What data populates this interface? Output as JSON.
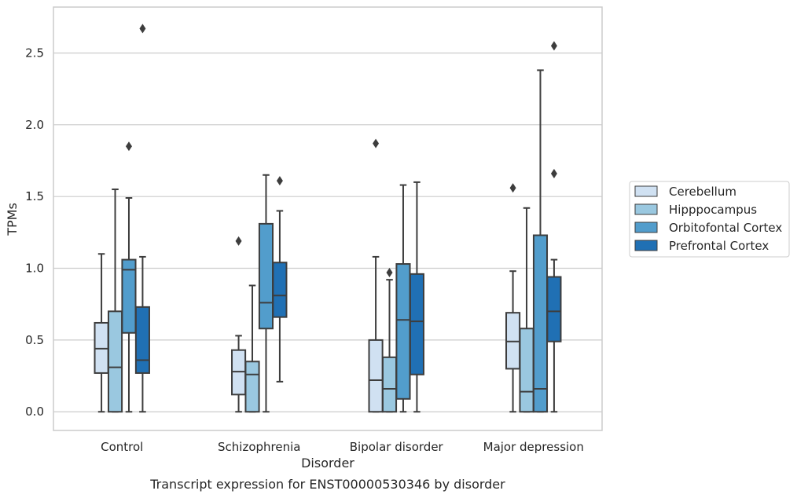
{
  "chart_data": {
    "type": "boxplot",
    "title": "",
    "xlabel": "Disorder",
    "ylabel": "TPMs",
    "caption": "Transcript expression for ENST00000530346 by disorder",
    "ylim": [
      -0.13,
      2.82
    ],
    "yticks": [
      0.0,
      0.5,
      1.0,
      1.5,
      2.0,
      2.5
    ],
    "ytick_labels": [
      "0.0",
      "0.5",
      "1.0",
      "1.5",
      "2.0",
      "2.5"
    ],
    "grid": "horizontal",
    "legend_position": "right",
    "categories": [
      "Control",
      "Schizophrenia",
      "Bipolar disorder",
      "Major depression"
    ],
    "series": [
      {
        "name": "Cerebellum",
        "color": "#d0e1f2",
        "boxes": [
          {
            "whislo": 0.0,
            "q1": 0.27,
            "med": 0.44,
            "q3": 0.62,
            "whishi": 1.1,
            "fliers": []
          },
          {
            "whislo": 0.0,
            "q1": 0.12,
            "med": 0.28,
            "q3": 0.43,
            "whishi": 0.53,
            "fliers": [
              1.19
            ]
          },
          {
            "whislo": 0.0,
            "q1": 0.0,
            "med": 0.22,
            "q3": 0.5,
            "whishi": 1.08,
            "fliers": [
              1.87
            ]
          },
          {
            "whislo": 0.0,
            "q1": 0.3,
            "med": 0.49,
            "q3": 0.69,
            "whishi": 0.98,
            "fliers": [
              1.56
            ]
          }
        ]
      },
      {
        "name": "Hipppocampus",
        "color": "#9ac8e0",
        "boxes": [
          {
            "whislo": 0.0,
            "q1": 0.0,
            "med": 0.31,
            "q3": 0.7,
            "whishi": 1.55,
            "fliers": []
          },
          {
            "whislo": 0.0,
            "q1": 0.0,
            "med": 0.26,
            "q3": 0.35,
            "whishi": 0.88,
            "fliers": []
          },
          {
            "whislo": 0.0,
            "q1": 0.0,
            "med": 0.16,
            "q3": 0.38,
            "whishi": 0.92,
            "fliers": [
              0.97
            ]
          },
          {
            "whislo": 0.0,
            "q1": 0.0,
            "med": 0.14,
            "q3": 0.58,
            "whishi": 1.42,
            "fliers": []
          }
        ]
      },
      {
        "name": "Orbitofontal Cortex",
        "color": "#529dcc",
        "boxes": [
          {
            "whislo": 0.0,
            "q1": 0.55,
            "med": 0.99,
            "q3": 1.06,
            "whishi": 1.49,
            "fliers": [
              1.85
            ]
          },
          {
            "whislo": 0.0,
            "q1": 0.58,
            "med": 0.76,
            "q3": 1.31,
            "whishi": 1.65,
            "fliers": []
          },
          {
            "whislo": 0.0,
            "q1": 0.09,
            "med": 0.64,
            "q3": 1.03,
            "whishi": 1.58,
            "fliers": []
          },
          {
            "whislo": 0.0,
            "q1": 0.0,
            "med": 0.16,
            "q3": 1.23,
            "whishi": 2.38,
            "fliers": []
          }
        ]
      },
      {
        "name": "Prefrontal Cortex",
        "color": "#2070b4",
        "boxes": [
          {
            "whislo": 0.0,
            "q1": 0.27,
            "med": 0.36,
            "q3": 0.73,
            "whishi": 1.08,
            "fliers": [
              2.67
            ]
          },
          {
            "whislo": 0.21,
            "q1": 0.66,
            "med": 0.81,
            "q3": 1.04,
            "whishi": 1.4,
            "fliers": [
              1.61
            ]
          },
          {
            "whislo": 0.0,
            "q1": 0.26,
            "med": 0.63,
            "q3": 0.96,
            "whishi": 1.6,
            "fliers": []
          },
          {
            "whislo": 0.0,
            "q1": 0.49,
            "med": 0.7,
            "q3": 0.94,
            "whishi": 1.06,
            "fliers": [
              2.55,
              1.66
            ]
          }
        ]
      }
    ]
  }
}
